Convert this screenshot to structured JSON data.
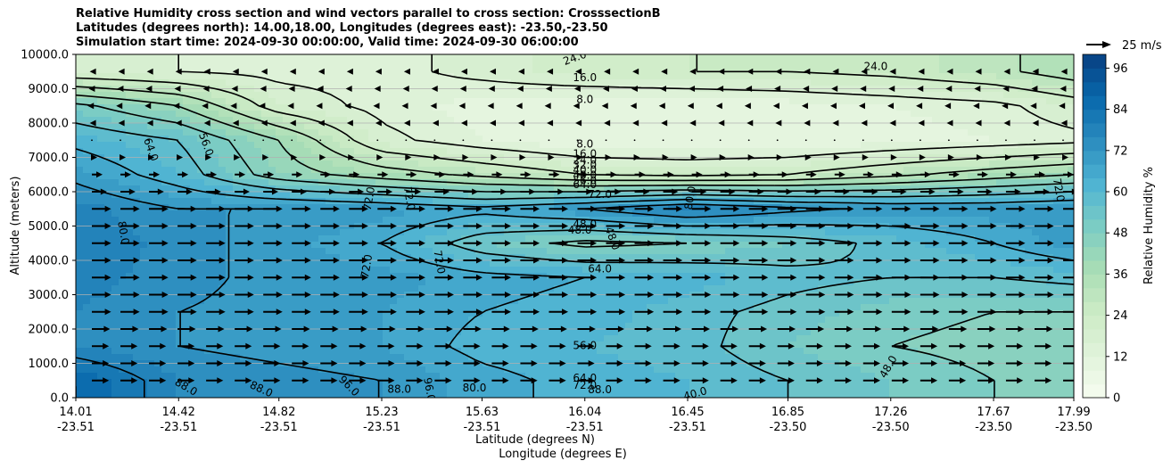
{
  "title_lines": [
    "Relative Humidity cross section and wind vectors parallel to cross section: CrosssectionB",
    "Latitudes (degrees north): 14.00,18.00, Longitudes (degrees east): -23.50,-23.50",
    "Simulation start time: 2024-09-30 00:00:00, Valid time: 2024-09-30 06:00:00"
  ],
  "chart_data": {
    "type": "heatmap",
    "subtype": "filled contour cross section with contour lines and wind vectors",
    "title": "Relative Humidity cross section and wind vectors parallel to cross section: CrosssectionB",
    "ylabel": "Altitude (meters)",
    "xlabel_lines": [
      "Latitude (degrees N)",
      "Longitude (degrees E)"
    ],
    "ylim": [
      0,
      10000
    ],
    "y_ticks": [
      "0.0",
      "1000.0",
      "2000.0",
      "3000.0",
      "4000.0",
      "5000.0",
      "6000.0",
      "7000.0",
      "8000.0",
      "9000.0",
      "10000.0"
    ],
    "x_ticks": [
      {
        "lat": "14.01",
        "lon": "-23.51"
      },
      {
        "lat": "14.42",
        "lon": "-23.51"
      },
      {
        "lat": "14.82",
        "lon": "-23.51"
      },
      {
        "lat": "15.23",
        "lon": "-23.51"
      },
      {
        "lat": "15.63",
        "lon": "-23.51"
      },
      {
        "lat": "16.04",
        "lon": "-23.51"
      },
      {
        "lat": "16.45",
        "lon": "-23.51"
      },
      {
        "lat": "16.85",
        "lon": "-23.50"
      },
      {
        "lat": "17.26",
        "lon": "-23.50"
      },
      {
        "lat": "17.67",
        "lon": "-23.50"
      },
      {
        "lat": "17.99",
        "lon": "-23.50"
      }
    ],
    "grid": "horizontal",
    "colorbar": {
      "label": "Relative Humidity %",
      "ticks": [
        "0",
        "12",
        "24",
        "36",
        "48",
        "60",
        "72",
        "84",
        "96"
      ],
      "levels": [
        0,
        4,
        8,
        12,
        16,
        20,
        24,
        28,
        32,
        36,
        40,
        44,
        48,
        52,
        56,
        60,
        64,
        68,
        72,
        76,
        80,
        84,
        88,
        92,
        96,
        100
      ],
      "colormap": "GnBu"
    },
    "wind_key": {
      "label": "25 m/s",
      "speed": 25
    },
    "contour_labels": [
      "24.0",
      "24.0",
      "16.0",
      "8.0",
      "8.0",
      "16.0",
      "24.0",
      "32.0",
      "40.0",
      "48.0",
      "56.0",
      "64.0",
      "64.0",
      "56.0",
      "72.0",
      "72.0",
      "72.0",
      "80.0",
      "72.0",
      "80.0",
      "48.0",
      "48.0",
      "48.0",
      "72.0",
      "72.0",
      "64.0",
      "56.0",
      "48.0",
      "64.0",
      "72.0",
      "88.0",
      "88.0",
      "96.0",
      "88.0",
      "96.0",
      "80.0",
      "88.0",
      "40.0"
    ],
    "rh_field": {
      "rows_altitude_m": [
        500,
        1500,
        2500,
        3500,
        4500,
        5500,
        6500,
        7500,
        8500,
        9500
      ],
      "columns_lat": [
        14.01,
        14.42,
        14.82,
        15.23,
        15.63,
        16.04,
        16.45,
        16.85,
        17.26,
        17.67,
        17.99
      ],
      "values": [
        [
          88,
          76,
          74,
          72,
          66,
          62,
          60,
          56,
          52,
          48,
          46
        ],
        [
          76,
          72,
          70,
          68,
          62,
          60,
          58,
          52,
          48,
          46,
          44
        ],
        [
          76,
          72,
          70,
          68,
          64,
          62,
          58,
          54,
          50,
          48,
          48
        ],
        [
          78,
          74,
          70,
          70,
          66,
          64,
          62,
          58,
          56,
          56,
          58
        ],
        [
          80,
          74,
          70,
          64,
          52,
          46,
          48,
          52,
          58,
          64,
          70
        ],
        [
          78,
          72,
          72,
          70,
          66,
          72,
          80,
          74,
          70,
          70,
          72
        ],
        [
          70,
          60,
          44,
          36,
          30,
          24,
          22,
          24,
          30,
          36,
          40
        ],
        [
          62,
          56,
          40,
          18,
          12,
          8,
          8,
          8,
          10,
          12,
          14
        ],
        [
          50,
          40,
          20,
          14,
          10,
          8,
          8,
          10,
          12,
          14,
          20
        ],
        [
          18,
          16,
          14,
          14,
          18,
          22,
          24,
          24,
          26,
          30,
          36
        ]
      ]
    },
    "wind_u_ms": {
      "rows_altitude_m": [
        500,
        1500,
        2500,
        3500,
        4500,
        5500,
        6500,
        7500,
        8500,
        9500
      ],
      "values": [
        8,
        8,
        9,
        9,
        9,
        9,
        5,
        0,
        -2,
        -1
      ]
    }
  },
  "colors": {
    "axis": "#000000",
    "grid": "#b0b0b0",
    "contour_line": "#000000",
    "colormap": [
      "#f7fcf0",
      "#e0f3db",
      "#ccebc5",
      "#a8ddb5",
      "#7bccc4",
      "#4eb3d3",
      "#2b8cbe",
      "#0868ac",
      "#084081"
    ]
  }
}
